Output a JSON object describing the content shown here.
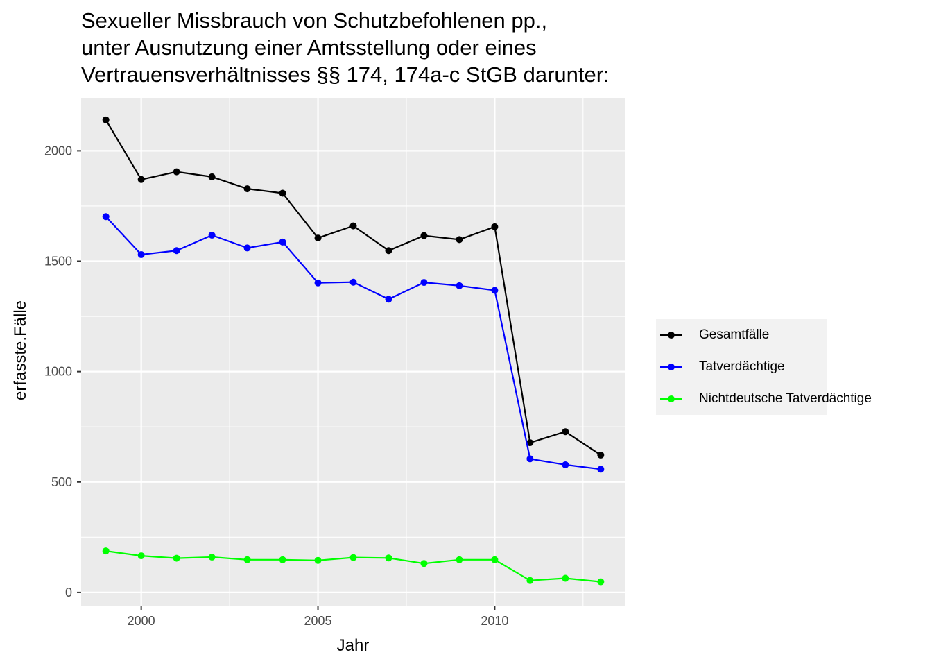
{
  "chart_data": {
    "type": "line",
    "title_lines": [
      "Sexueller Missbrauch von Schutzbefohlenen pp.,",
      "unter Ausnutzung einer Amtsstellung oder eines",
      "Vertrauensverhältnisses §§ 174, 174a-c StGB darunter:"
    ],
    "xlabel": "Jahr",
    "ylabel": "erfasste.Fälle",
    "xlim": [
      1998.3,
      2013.7
    ],
    "ylim": [
      -60,
      2240
    ],
    "x_ticks": [
      2000,
      2005,
      2010
    ],
    "x_tick_labels": [
      "2000",
      "2005",
      "2010"
    ],
    "y_ticks": [
      0,
      500,
      1000,
      1500,
      2000
    ],
    "y_tick_labels": [
      "0",
      "500",
      "1000",
      "1500",
      "2000"
    ],
    "x": [
      1999,
      2000,
      2001,
      2002,
      2003,
      2004,
      2005,
      2006,
      2007,
      2008,
      2009,
      2010,
      2011,
      2012,
      2013
    ],
    "series": [
      {
        "name": "Gesamtfälle",
        "color": "#000000",
        "values": [
          2140,
          1870,
          1905,
          1882,
          1828,
          1808,
          1605,
          1660,
          1548,
          1616,
          1598,
          1656,
          678,
          728,
          622
        ]
      },
      {
        "name": "Tatverdächtige",
        "color": "#0000ff",
        "values": [
          1702,
          1530,
          1548,
          1618,
          1560,
          1587,
          1402,
          1405,
          1328,
          1404,
          1389,
          1368,
          605,
          578,
          558
        ]
      },
      {
        "name": "Nichtdeutsche Tatverdächtige",
        "color": "#00ff00",
        "values": [
          188,
          166,
          155,
          160,
          148,
          148,
          145,
          158,
          156,
          131,
          148,
          148,
          54,
          64,
          48
        ]
      }
    ],
    "grid": true,
    "legend_position": "right"
  }
}
